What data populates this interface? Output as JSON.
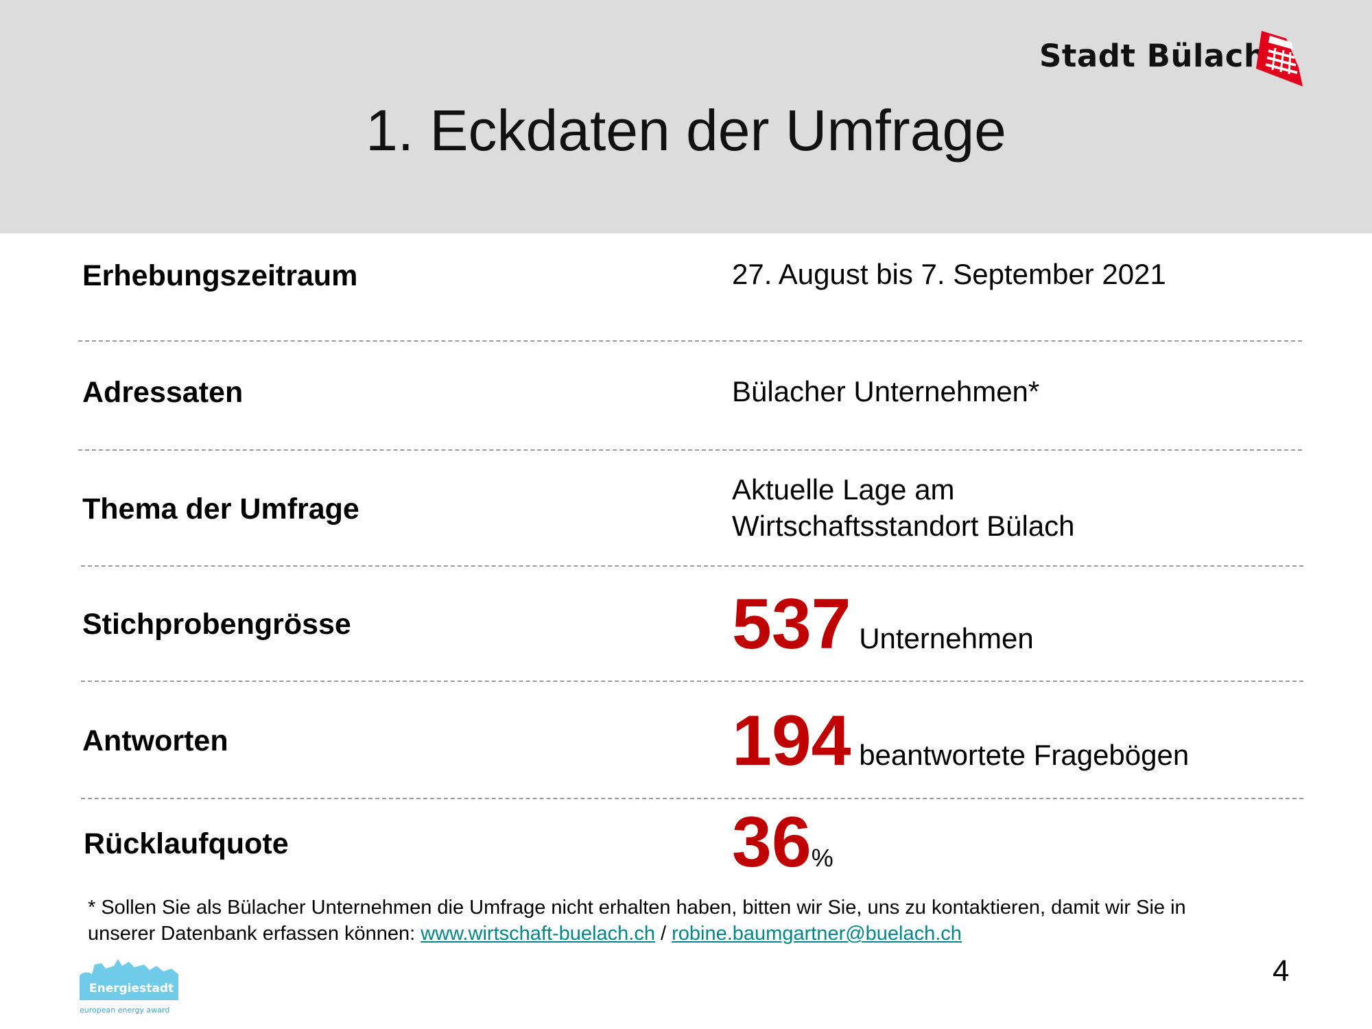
{
  "header": {
    "title": "1. Eckdaten der Umfrage",
    "logo_text": "Stadt Bülach",
    "logo_icon": "stadt-buelach-crest-icon"
  },
  "rows": [
    {
      "label": "Erhebungszeitraum",
      "value": "27. August bis 7. September 2021"
    },
    {
      "label": "Adressaten",
      "value": "Bülacher Unternehmen*"
    },
    {
      "label": "Thema der Umfrage",
      "value_line1": "Aktuelle Lage am",
      "value_line2": "Wirtschaftsstandort Bülach"
    },
    {
      "label": "Stichprobengrösse",
      "number": "537",
      "unit": "Unternehmen"
    },
    {
      "label": "Antworten",
      "number": "194",
      "unit": "beantwortete Fragebögen"
    },
    {
      "label": "Rücklaufquote",
      "number": "36",
      "unit": "%"
    }
  ],
  "footnote": {
    "text_line1": "* Sollen Sie als Bülacher Unternehmen die Umfrage nicht erhalten haben, bitten wir Sie, uns zu kontaktieren, damit wir Sie in",
    "text_line2": "unserer Datenbank erfassen können: ",
    "link1": "www.wirtschaft-buelach.ch",
    "separator": " / ",
    "link2": "robine.baumgartner@buelach.ch"
  },
  "badge": {
    "title": "Energiestadt",
    "subtitle": "european energy award"
  },
  "page_number": "4",
  "colors": {
    "header_bg": "#dcdcdc",
    "highlight_red": "#c00000",
    "link_teal": "#00868b",
    "logo_red": "#e2001a",
    "badge_blue": "#6fcbe8"
  }
}
